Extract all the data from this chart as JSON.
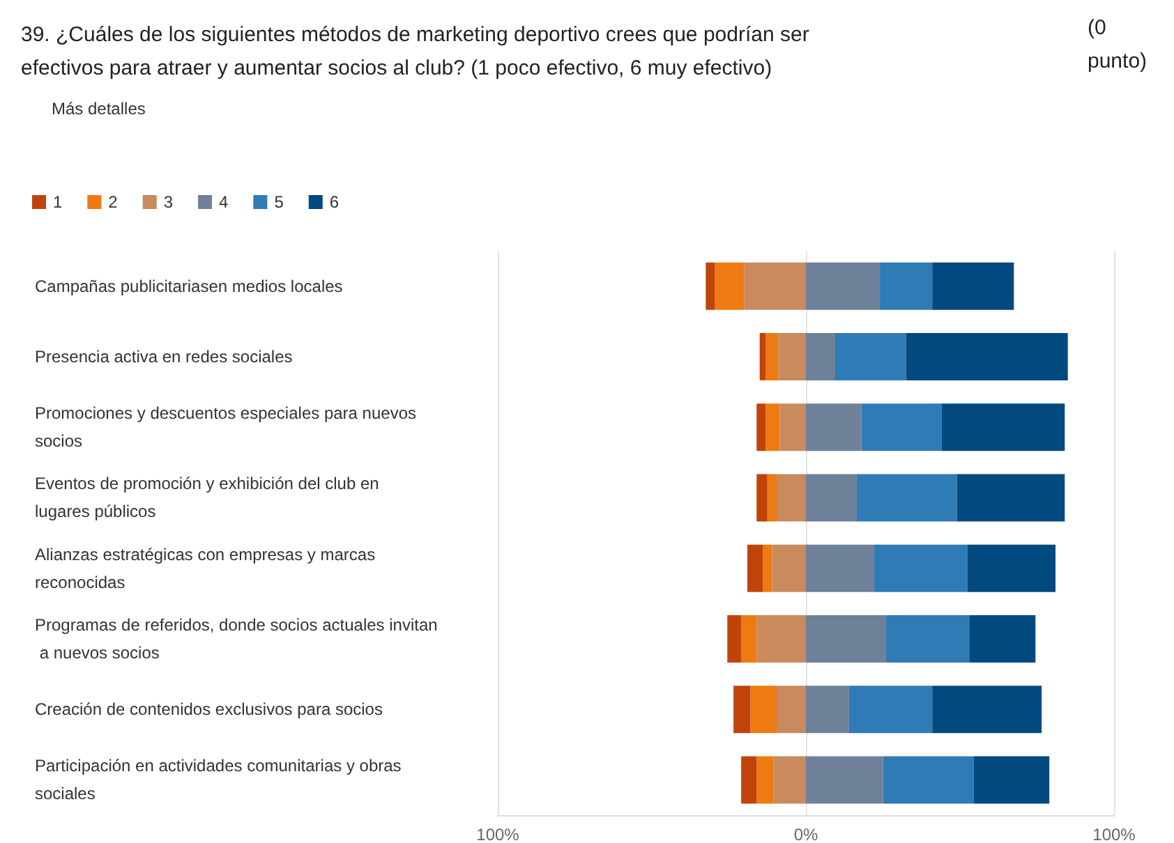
{
  "chart_data": {
    "type": "bar",
    "orientation": "horizontal",
    "stacked": true,
    "title": "39. ¿Cuáles de los siguientes métodos de marketing deportivo crees que podrían ser efectivos para atraer y aumentar socios al club? (1 poco efectivo, 6 muy efectivo)",
    "annotations": [
      "(0 punto)",
      "Más detalles"
    ],
    "categories": [
      "Campañas publicitariasen medios locales",
      "Presencia activa en redes sociales",
      "Promociones y descuentos especiales para nuevos socios",
      "Eventos de promoción y exhibición del club en lugares públicos",
      "Alianzas estratégicas con empresas y marcas reconocidas",
      "Programas de referidos, donde socios actuales invitan a nuevos socios",
      "Creación de contenidos exclusivos para socios",
      "Participación en actividades comunitarias y obras sociales"
    ],
    "series": [
      {
        "name": "1",
        "color": "#c0440a",
        "values": [
          -3,
          -2,
          -3,
          -3.5,
          -5,
          -4.5,
          -5.5,
          -5
        ]
      },
      {
        "name": "2",
        "color": "#ee7a12",
        "values": [
          -9.5,
          -4,
          -4.5,
          -3,
          -3,
          -5,
          -8.5,
          -5.5
        ]
      },
      {
        "name": "3",
        "color": "#c98a5e",
        "values": [
          -20,
          -9,
          -8.5,
          -9.5,
          -11,
          -16,
          -9.5,
          -10.5
        ]
      },
      {
        "name": "4",
        "color": "#6f8199",
        "values": [
          24,
          9.5,
          18,
          16.5,
          22,
          26,
          14,
          25
        ]
      },
      {
        "name": "5",
        "color": "#2f7bb5",
        "values": [
          17,
          23,
          26,
          32.5,
          30.5,
          27,
          27,
          29.5
        ]
      },
      {
        "name": "6",
        "color": "#02497f",
        "values": [
          26.5,
          52.5,
          40,
          35,
          28.5,
          21.5,
          35.5,
          24.5
        ]
      }
    ],
    "xlim": [
      -100,
      100
    ],
    "xticks": [
      {
        "value": -100,
        "label": "100%"
      },
      {
        "value": 0,
        "label": "0%"
      },
      {
        "value": 100,
        "label": "100%"
      }
    ],
    "grid": "x",
    "legend": "top left"
  }
}
